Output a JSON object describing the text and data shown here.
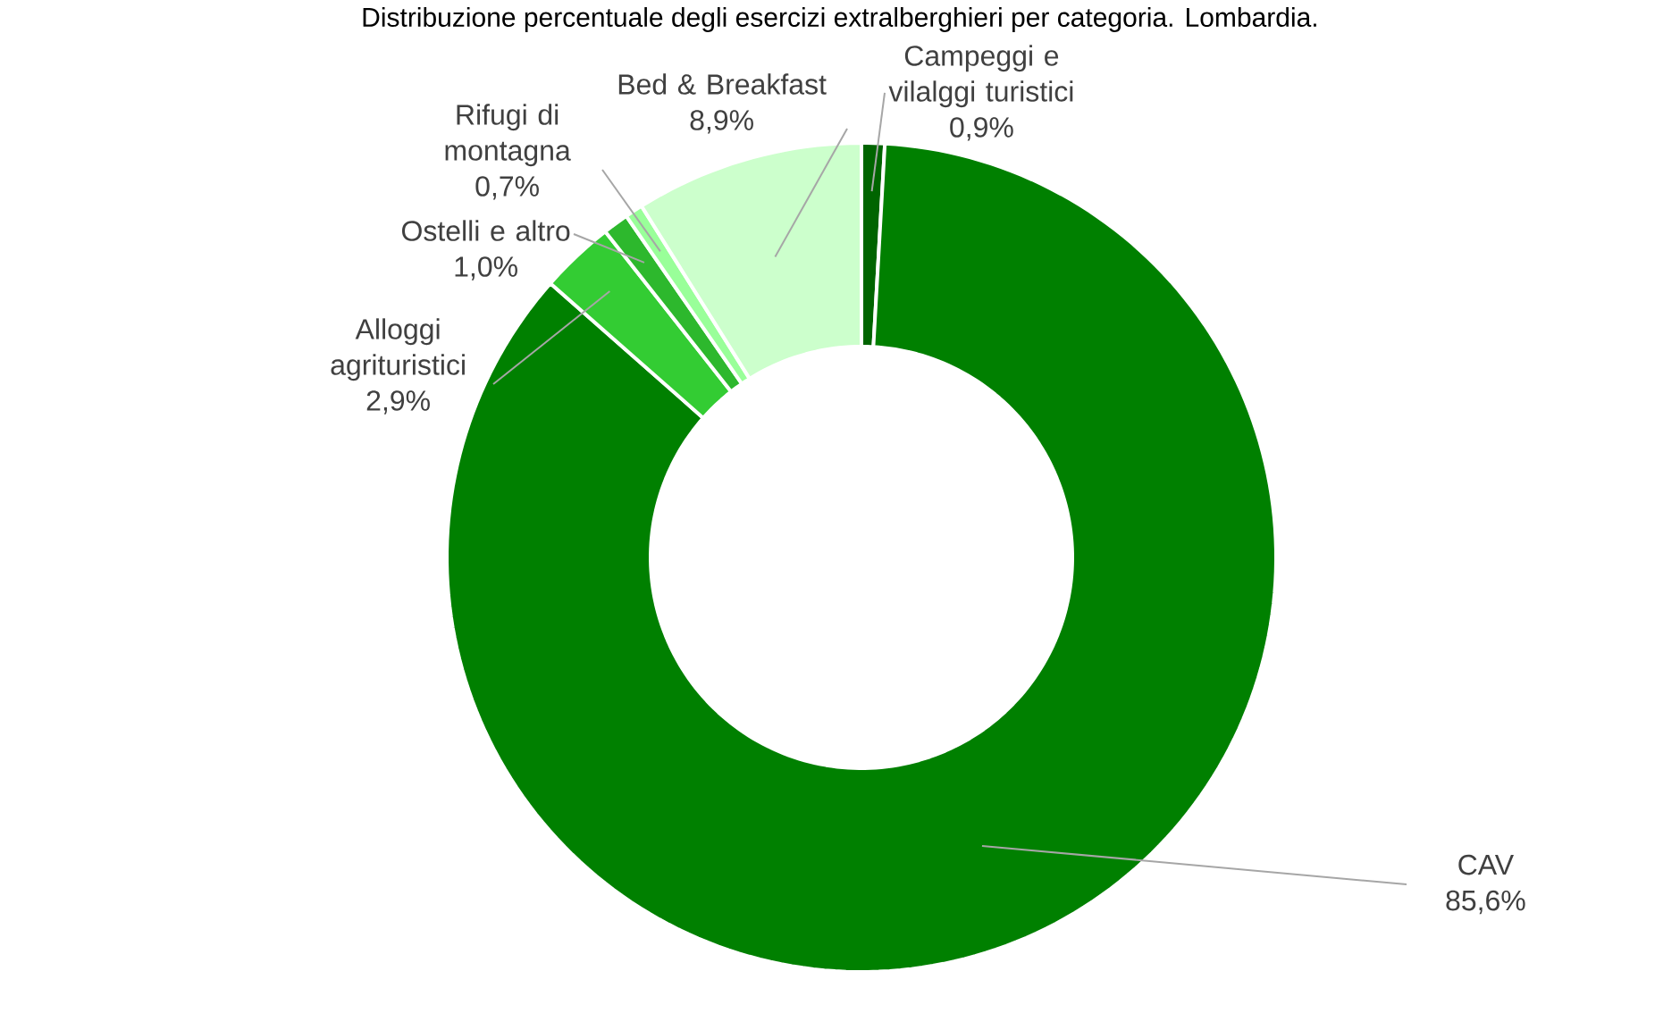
{
  "chart_data": {
    "type": "donut",
    "title": "Distribuzione percentuale degli esercizi extralberghieri per categoria. Lombardia.",
    "categories": [
      "Campeggi e vilalggi turistici",
      "CAV",
      "Alloggi agrituristici",
      "Ostelli e altro",
      "Rifugi di montagna",
      "Bed & Breakfast"
    ],
    "values": [
      0.9,
      85.6,
      2.9,
      1.0,
      0.7,
      8.9
    ],
    "value_labels": [
      "0,9%",
      "85,6%",
      "2,9%",
      "1,0%",
      "0,7%",
      "8,9%"
    ],
    "colors": [
      "#006400",
      "#008000",
      "#33cc33",
      "#2db82d",
      "#99ff99",
      "#ccffcc"
    ]
  }
}
